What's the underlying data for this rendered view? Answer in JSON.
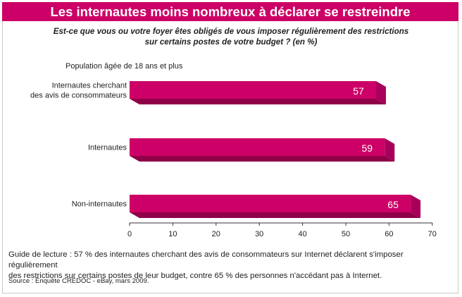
{
  "header": {
    "title": "Les internautes moins nombreux à déclarer se restreindre",
    "question_line1": "Est-ce que vous ou votre foyer êtes obligés de vous imposer régulièrement des restrictions",
    "question_line2": "sur certains postes de votre budget ? (en %)",
    "population": "Population âgée de 18 ans et plus"
  },
  "chart_data": {
    "type": "bar",
    "orientation": "horizontal",
    "categories": [
      [
        "Internautes cherchant",
        "des avis de consommateurs"
      ],
      [
        "Internautes"
      ],
      [
        "Non-internautes"
      ]
    ],
    "values": [
      57,
      59,
      65
    ],
    "xlim": [
      0,
      70
    ],
    "xticks": [
      "0",
      "10",
      "20",
      "30",
      "40",
      "50",
      "60",
      "70"
    ],
    "bar_color": "#cc0066",
    "grid": false
  },
  "footer": {
    "guide_line1": "Guide de lecture : 57 % des internautes cherchant des avis de consommateurs sur Internet déclarent s'imposer régulièrement",
    "guide_line2": "des restrictions sur certains postes de leur budget, contre 65 % des personnes n'accédant pas à Internet.",
    "source": "Source : Enquête CRÉDOC - eBay, mars 2009."
  }
}
